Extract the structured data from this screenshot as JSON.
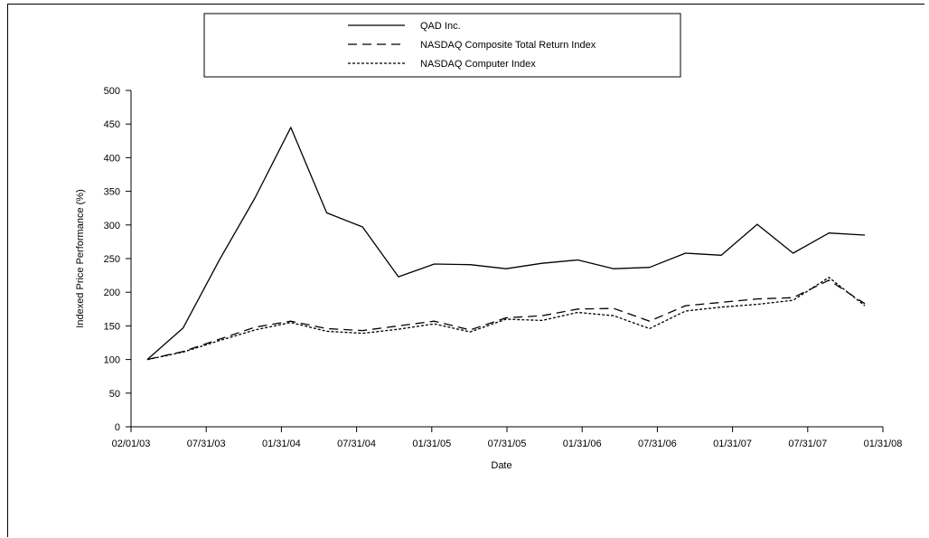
{
  "chart_data": {
    "type": "line",
    "title": "",
    "xlabel": "Date",
    "ylabel": "Indexed Price Performance (%)",
    "ylim": [
      0,
      500
    ],
    "yticks": [
      "0",
      "50",
      "100",
      "150",
      "200",
      "250",
      "300",
      "350",
      "400",
      "450",
      "500"
    ],
    "xtick_labels": [
      "02/01/03",
      "07/31/03",
      "01/31/04",
      "07/31/04",
      "01/31/05",
      "07/31/05",
      "01/31/06",
      "07/31/06",
      "01/31/07",
      "07/31/07",
      "01/31/08"
    ],
    "grid": false,
    "legend_position": "top",
    "x": [
      "02/01/03",
      "04/30/03",
      "07/31/03",
      "10/31/03",
      "01/31/04",
      "04/30/04",
      "07/31/04",
      "10/31/04",
      "01/31/05",
      "04/30/05",
      "07/31/05",
      "10/31/05",
      "01/31/06",
      "04/30/06",
      "07/31/06",
      "10/31/06",
      "01/31/07",
      "04/30/07",
      "07/31/07",
      "10/31/07",
      "01/31/08"
    ],
    "series": [
      {
        "name": "QAD Inc.",
        "style": "solid",
        "color": "#000000",
        "values": [
          100,
          147,
          247,
          340,
          445,
          318,
          297,
          223,
          242,
          241,
          235,
          243,
          248,
          235,
          237,
          258,
          255,
          301,
          258,
          288,
          285
        ]
      },
      {
        "name": "NASDAQ Composite Total Return Index",
        "style": "dashed",
        "color": "#000000",
        "values": [
          100,
          112,
          130,
          148,
          157,
          146,
          143,
          150,
          157,
          144,
          162,
          165,
          175,
          176,
          157,
          180,
          185,
          190,
          192,
          218,
          183
        ]
      },
      {
        "name": "NASDAQ Computer Index",
        "style": "dotted",
        "color": "#000000",
        "values": [
          100,
          111,
          128,
          144,
          155,
          142,
          139,
          145,
          153,
          141,
          160,
          158,
          170,
          165,
          146,
          172,
          178,
          182,
          188,
          222,
          180
        ]
      }
    ]
  }
}
